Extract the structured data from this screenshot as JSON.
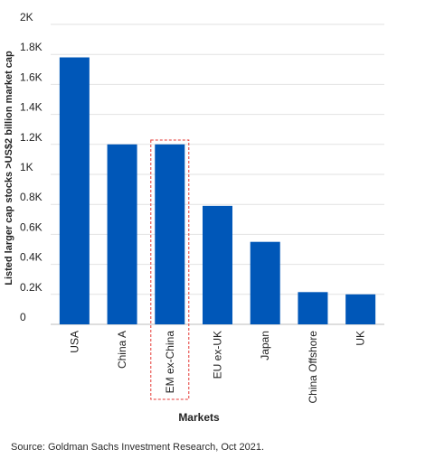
{
  "chart_data": {
    "type": "bar",
    "categories": [
      "USA",
      "China A",
      "EM ex-China",
      "EU ex-UK",
      "Japan",
      "China Offshore",
      "UK"
    ],
    "values": [
      1780,
      1200,
      1200,
      790,
      550,
      215,
      200
    ],
    "xlabel": "Markets",
    "ylabel": "Listed larger cap stocks >US$2 billion market cap",
    "ylim": [
      0,
      2000
    ],
    "yticks": [
      0,
      200,
      400,
      600,
      800,
      1000,
      1200,
      1400,
      1600,
      1800,
      2000
    ],
    "ytick_labels": [
      "0",
      "0.2K",
      "0.4K",
      "0.6K",
      "0.8K",
      "1K",
      "1.2K",
      "1.4K",
      "1.6K",
      "1.8K",
      "2K"
    ],
    "highlight_category": "EM ex-China",
    "grid": true,
    "legend": "none",
    "colors": {
      "bar": "#0057B8",
      "grid": "#e2e2e2",
      "highlight_box": "#e53935",
      "text": "#222222"
    }
  },
  "source": "Source: Goldman Sachs Investment Research, Oct 2021."
}
